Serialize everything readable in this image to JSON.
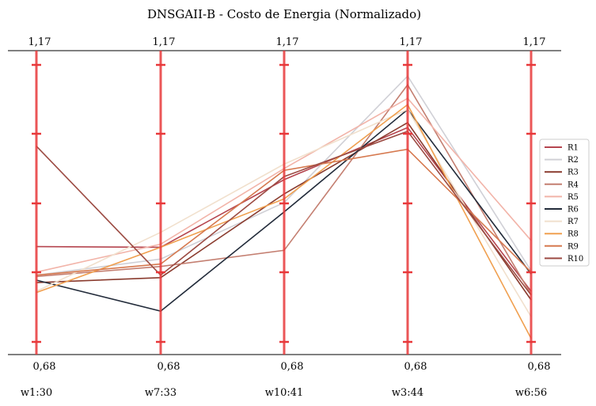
{
  "chart_data": {
    "type": "parallel-coordinates",
    "title": "DNSGAII-B - Costo de Energia (Normalizado)",
    "axes": [
      {
        "name": "w1:30",
        "top_label": "1,17",
        "bottom_label": "0,68"
      },
      {
        "name": "w7:33",
        "top_label": "1,17",
        "bottom_label": "0,68"
      },
      {
        "name": "w10:41",
        "top_label": "1,17",
        "bottom_label": "0,68"
      },
      {
        "name": "w3:44",
        "top_label": "1,17",
        "bottom_label": "0,68"
      },
      {
        "name": "w6:56",
        "top_label": "1,17",
        "bottom_label": "0,68"
      }
    ],
    "ylim": [
      0.68,
      1.17
    ],
    "axis_color": "#e8383a",
    "grid": false,
    "legend_position": "right",
    "series": [
      {
        "name": "R1",
        "color": "#b5454f",
        "values": [
          0.854,
          0.853,
          0.962,
          1.046,
          0.782
        ]
      },
      {
        "name": "R2",
        "color": "#d0d0d6",
        "values": [
          0.808,
          0.834,
          0.925,
          1.129,
          0.815
        ]
      },
      {
        "name": "R3",
        "color": "#8a3b2e",
        "values": [
          0.796,
          0.804,
          0.939,
          1.054,
          0.768
        ]
      },
      {
        "name": "R4",
        "color": "#c47f71",
        "values": [
          0.806,
          0.822,
          0.848,
          1.115,
          0.777
        ]
      },
      {
        "name": "R5",
        "color": "#f2b4a9",
        "values": [
          0.813,
          0.858,
          0.98,
          1.093,
          0.864
        ]
      },
      {
        "name": "R6",
        "color": "#222b3a",
        "values": [
          0.8,
          0.75,
          0.91,
          1.075,
          0.81
        ]
      },
      {
        "name": "R7",
        "color": "#f1e0cd",
        "values": [
          0.782,
          0.877,
          0.987,
          1.075,
          0.741
        ]
      },
      {
        "name": "R8",
        "color": "#f0a050",
        "values": [
          0.78,
          0.853,
          0.931,
          1.083,
          0.706
        ]
      },
      {
        "name": "R9",
        "color": "#d6794f",
        "values": [
          0.808,
          0.826,
          0.977,
          1.011,
          0.813
        ]
      },
      {
        "name": "R10",
        "color": "#9c4b43",
        "values": [
          1.016,
          0.808,
          0.967,
          1.04,
          0.776
        ]
      }
    ]
  }
}
